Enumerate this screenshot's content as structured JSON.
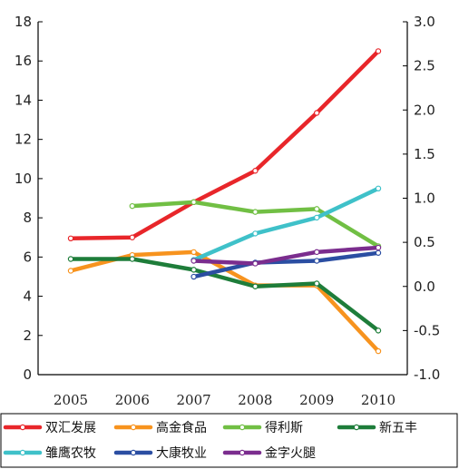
{
  "chart_data": {
    "type": "line",
    "x": [
      "2005",
      "2006",
      "2007",
      "2008",
      "2009",
      "2010"
    ],
    "y_left": {
      "range": [
        0,
        18
      ],
      "ticks": [
        "0",
        "2",
        "4",
        "6",
        "8",
        "10",
        "12",
        "14",
        "16",
        "18"
      ]
    },
    "y_right": {
      "range": [
        -1.0,
        3.0
      ],
      "ticks": [
        "-1.0",
        "-0.5",
        "0.0",
        "0.5",
        "1.0",
        "1.5",
        "2.0",
        "2.5",
        "3.0"
      ]
    },
    "grid": false,
    "legend_position": "bottom",
    "series": [
      {
        "name": "双汇发展",
        "axis": "left",
        "color": "#e8262a",
        "values": [
          6.95,
          7.0,
          8.8,
          10.4,
          13.35,
          16.5
        ]
      },
      {
        "name": "高金食品",
        "axis": "left",
        "color": "#f7931e",
        "values": [
          5.3,
          6.1,
          6.25,
          4.55,
          4.55,
          1.2
        ]
      },
      {
        "name": "得利斯",
        "axis": "left",
        "color": "#71bf44",
        "values": [
          null,
          8.6,
          8.8,
          8.3,
          8.45,
          6.55
        ]
      },
      {
        "name": "新五丰",
        "axis": "left",
        "color": "#1e7d3a",
        "values": [
          5.9,
          5.9,
          5.35,
          4.5,
          4.65,
          2.25
        ]
      },
      {
        "name": "雏鹰农牧",
        "axis": "right",
        "color": "#3fc1c9",
        "values": [
          null,
          null,
          0.3,
          0.6,
          0.78,
          1.11
        ]
      },
      {
        "name": "大康牧业",
        "axis": "right",
        "color": "#2b4ea2",
        "values": [
          null,
          null,
          0.11,
          0.27,
          0.29,
          0.38
        ]
      },
      {
        "name": "金字火腿",
        "axis": "right",
        "color": "#7b2d8e",
        "values": [
          null,
          null,
          0.29,
          0.26,
          0.39,
          0.44
        ]
      }
    ]
  }
}
